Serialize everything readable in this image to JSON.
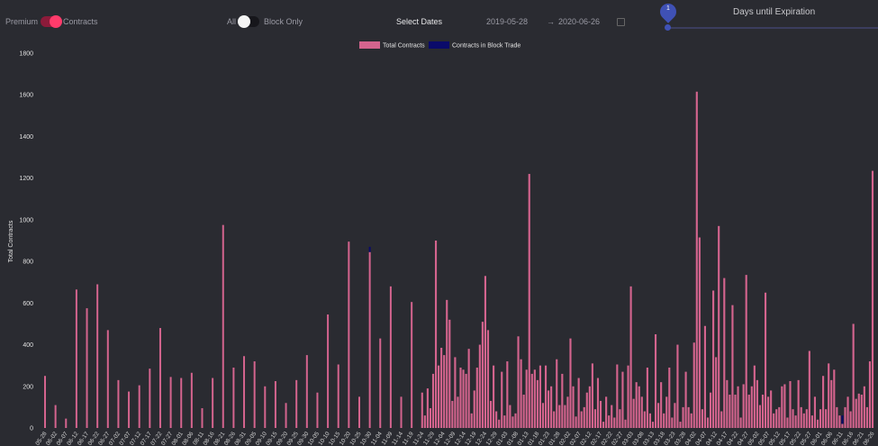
{
  "toolbar": {
    "premium_label": "Premium",
    "contracts_label": "Contracts",
    "all_label": "All",
    "block_only_label": "Block Only",
    "select_dates_label": "Select Dates",
    "start_date": "2019-05-28",
    "arrow": "→",
    "end_date": "2020-06-26",
    "expiration_title": "Days until Expiration",
    "expiration_value": "1"
  },
  "colors": {
    "total_contracts": "#d4648e",
    "block_trade": "#0a0a6a",
    "background": "#2a2b31"
  },
  "chart_data": {
    "type": "bar",
    "ylabel": "Total Contracts",
    "ylim": [
      0,
      1800
    ],
    "yticks": [
      0,
      200,
      400,
      600,
      800,
      1000,
      1200,
      1400,
      1600,
      1800
    ],
    "legend": {
      "position": "top-center",
      "entries": [
        "Total Contracts",
        "Contracts in Block Trade"
      ]
    },
    "series": [
      {
        "name": "Total Contracts",
        "color": "#d4648e",
        "stacked_total": true
      },
      {
        "name": "Contracts in Block Trade",
        "color": "#0a0a6a"
      }
    ],
    "x_tick_labels": [
      "05-28",
      "06-02",
      "06-07",
      "06-12",
      "06-17",
      "06-22",
      "06-27",
      "07-02",
      "07-07",
      "07-12",
      "07-17",
      "07-22",
      "07-27",
      "08-01",
      "08-06",
      "08-11",
      "08-16",
      "08-21",
      "08-26",
      "08-31",
      "09-05",
      "09-10",
      "09-15",
      "09-20",
      "09-25",
      "09-30",
      "10-05",
      "10-10",
      "10-15",
      "10-20",
      "10-25",
      "10-30",
      "11-04",
      "11-09",
      "11-14",
      "11-19",
      "11-24",
      "11-29",
      "12-04",
      "12-09",
      "12-14",
      "12-19",
      "12-24",
      "12-29",
      "01-03",
      "01-08",
      "01-13",
      "01-18",
      "01-23",
      "01-28",
      "02-02",
      "02-07",
      "02-12",
      "02-17",
      "02-22",
      "02-27",
      "03-03",
      "03-08",
      "03-13",
      "03-18",
      "03-23",
      "03-28",
      "04-02",
      "04-07",
      "04-12",
      "04-17",
      "04-22",
      "04-27",
      "05-02",
      "05-07",
      "05-12",
      "05-17",
      "05-22",
      "05-27",
      "06-01",
      "06-06",
      "06-11",
      "06-16",
      "06-21",
      "06-26"
    ],
    "sparse_bars": [
      {
        "day": 0,
        "total": 250
      },
      {
        "day": 5,
        "total": 110
      },
      {
        "day": 10,
        "total": 45
      },
      {
        "day": 15,
        "total": 665
      },
      {
        "day": 20,
        "total": 575
      },
      {
        "day": 25,
        "total": 690
      },
      {
        "day": 30,
        "total": 470
      },
      {
        "day": 35,
        "total": 230
      },
      {
        "day": 40,
        "total": 175
      },
      {
        "day": 45,
        "total": 205
      },
      {
        "day": 50,
        "total": 285
      },
      {
        "day": 55,
        "total": 480
      },
      {
        "day": 60,
        "total": 245
      },
      {
        "day": 65,
        "total": 240
      },
      {
        "day": 70,
        "total": 265
      },
      {
        "day": 75,
        "total": 95
      },
      {
        "day": 80,
        "total": 240
      },
      {
        "day": 85,
        "total": 975
      },
      {
        "day": 90,
        "total": 290
      },
      {
        "day": 95,
        "total": 345
      },
      {
        "day": 100,
        "total": 320
      },
      {
        "day": 105,
        "total": 200
      },
      {
        "day": 110,
        "total": 225
      },
      {
        "day": 115,
        "total": 120
      },
      {
        "day": 120,
        "total": 230
      },
      {
        "day": 125,
        "total": 350
      },
      {
        "day": 130,
        "total": 170
      },
      {
        "day": 135,
        "total": 545
      },
      {
        "day": 140,
        "total": 305
      },
      {
        "day": 145,
        "total": 895
      },
      {
        "day": 150,
        "total": 150
      },
      {
        "day": 155,
        "total": 845,
        "block": 25
      },
      {
        "day": 160,
        "total": 430
      },
      {
        "day": 165,
        "total": 680
      },
      {
        "day": 170,
        "total": 150
      },
      {
        "day": 175,
        "total": 605
      }
    ],
    "dense_range": {
      "start_day": 180,
      "end_day": 395
    },
    "dense_values": [
      170,
      60,
      190,
      95,
      260,
      900,
      300,
      385,
      350,
      615,
      520,
      130,
      340,
      150,
      290,
      280,
      260,
      380,
      70,
      180,
      290,
      400,
      510,
      730,
      470,
      130,
      300,
      80,
      40,
      270,
      60,
      320,
      110,
      55,
      70,
      440,
      330,
      160,
      280,
      1220,
      260,
      280,
      230,
      300,
      120,
      300,
      180,
      200,
      80,
      330,
      110,
      260,
      110,
      150,
      430,
      200,
      55,
      240,
      80,
      100,
      170,
      200,
      310,
      90,
      240,
      130,
      30,
      150,
      60,
      110,
      50,
      305,
      90,
      270,
      40,
      300,
      680,
      140,
      220,
      200,
      150,
      80,
      290,
      70,
      30,
      450,
      120,
      220,
      70,
      150,
      290,
      50,
      120,
      400,
      30,
      100,
      270,
      100,
      70,
      410,
      1615,
      915,
      90,
      490,
      50,
      170,
      660,
      340,
      970,
      80,
      720,
      230,
      160,
      590,
      160,
      200,
      50,
      210,
      735,
      160,
      200,
      300,
      230,
      110,
      160,
      650,
      150,
      180,
      70,
      90,
      100,
      200,
      210,
      50,
      225,
      90,
      60,
      230,
      100,
      70,
      90,
      370,
      60,
      150,
      40,
      90,
      250,
      90,
      310,
      230,
      280,
      100,
      60,
      20,
      100,
      150,
      80,
      500,
      140,
      165,
      160,
      200,
      100,
      320,
      1235
    ],
    "dense_block": [
      {
        "index": 153,
        "value": 40
      }
    ]
  }
}
